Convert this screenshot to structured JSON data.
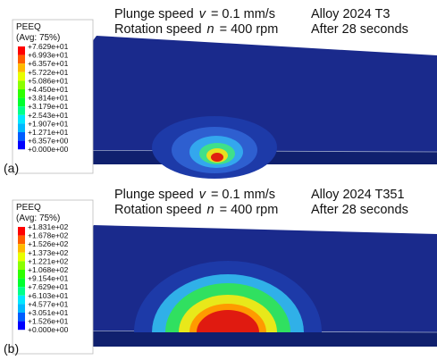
{
  "legend_colors": [
    "#ff0000",
    "#ff5d00",
    "#ffb900",
    "#e8ff00",
    "#8bff00",
    "#2eff00",
    "#00ff2e",
    "#00ff8b",
    "#00e8ff",
    "#00b9ff",
    "#005dff",
    "#0000ff"
  ],
  "panels": [
    {
      "label": "(a)",
      "legend": {
        "title": "PEEQ",
        "subtitle": "(Avg: 75%)",
        "entries": [
          "+7.629e+01",
          "+6.993e+01",
          "+6.357e+01",
          "+5.722e+01",
          "+5.086e+01",
          "+4.450e+01",
          "+3.814e+01",
          "+3.179e+01",
          "+2.543e+01",
          "+1.907e+01",
          "+1.271e+01",
          "+6.357e+00",
          "+0.000e+00"
        ]
      },
      "left": [
        [
          "Plunge speed",
          "v",
          "= 0.1 mm/s"
        ],
        [
          "Rotation speed",
          "n",
          "= 400 rpm"
        ]
      ],
      "right": [
        "Alloy 2024 T3",
        "After 28 seconds"
      ]
    },
    {
      "label": "(b)",
      "legend": {
        "title": "PEEQ",
        "subtitle": "(Avg: 75%)",
        "entries": [
          "+1.831e+02",
          "+1.678e+02",
          "+1.526e+02",
          "+1.373e+02",
          "+1.221e+02",
          "+1.068e+02",
          "+9.154e+01",
          "+7.629e+01",
          "+6.103e+01",
          "+4.577e+01",
          "+3.051e+01",
          "+1.526e+01",
          "+0.000e+00"
        ]
      },
      "left": [
        [
          "Plunge speed",
          "v",
          "= 0.1 mm/s"
        ],
        [
          "Rotation speed",
          "n",
          "= 400 rpm"
        ]
      ],
      "right": [
        "Alloy 2024 T351",
        "After 28 seconds"
      ]
    }
  ]
}
